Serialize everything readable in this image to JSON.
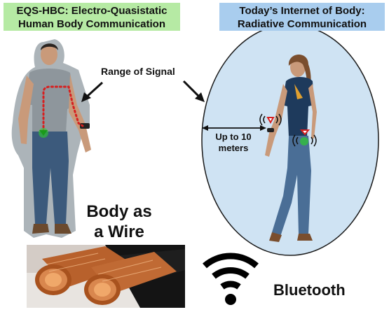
{
  "titles": {
    "left_line1": "EQS-HBC: Electro-Quasistatic",
    "left_line2": "Human Body Communication",
    "right_line1": "Today’s Internet of Body:",
    "right_line2": "Radiative Communication"
  },
  "labels": {
    "range": "Range of Signal",
    "distance_line1": "Up to 10",
    "distance_line2": "meters",
    "wire_line1": "Body as",
    "wire_line2": "a Wire",
    "bluetooth": "Bluetooth"
  },
  "colors": {
    "left_title_bg": "#b6eaa4",
    "right_title_bg": "#a9cdee",
    "signal_dots": "#d62020",
    "device_green": "#2ecc2e",
    "bubble_fill": "#cfe3f3",
    "copper": "#c8733e"
  },
  "icons": [
    "wifi-icon",
    "signal-waves-icon",
    "copper-cable-icon"
  ]
}
